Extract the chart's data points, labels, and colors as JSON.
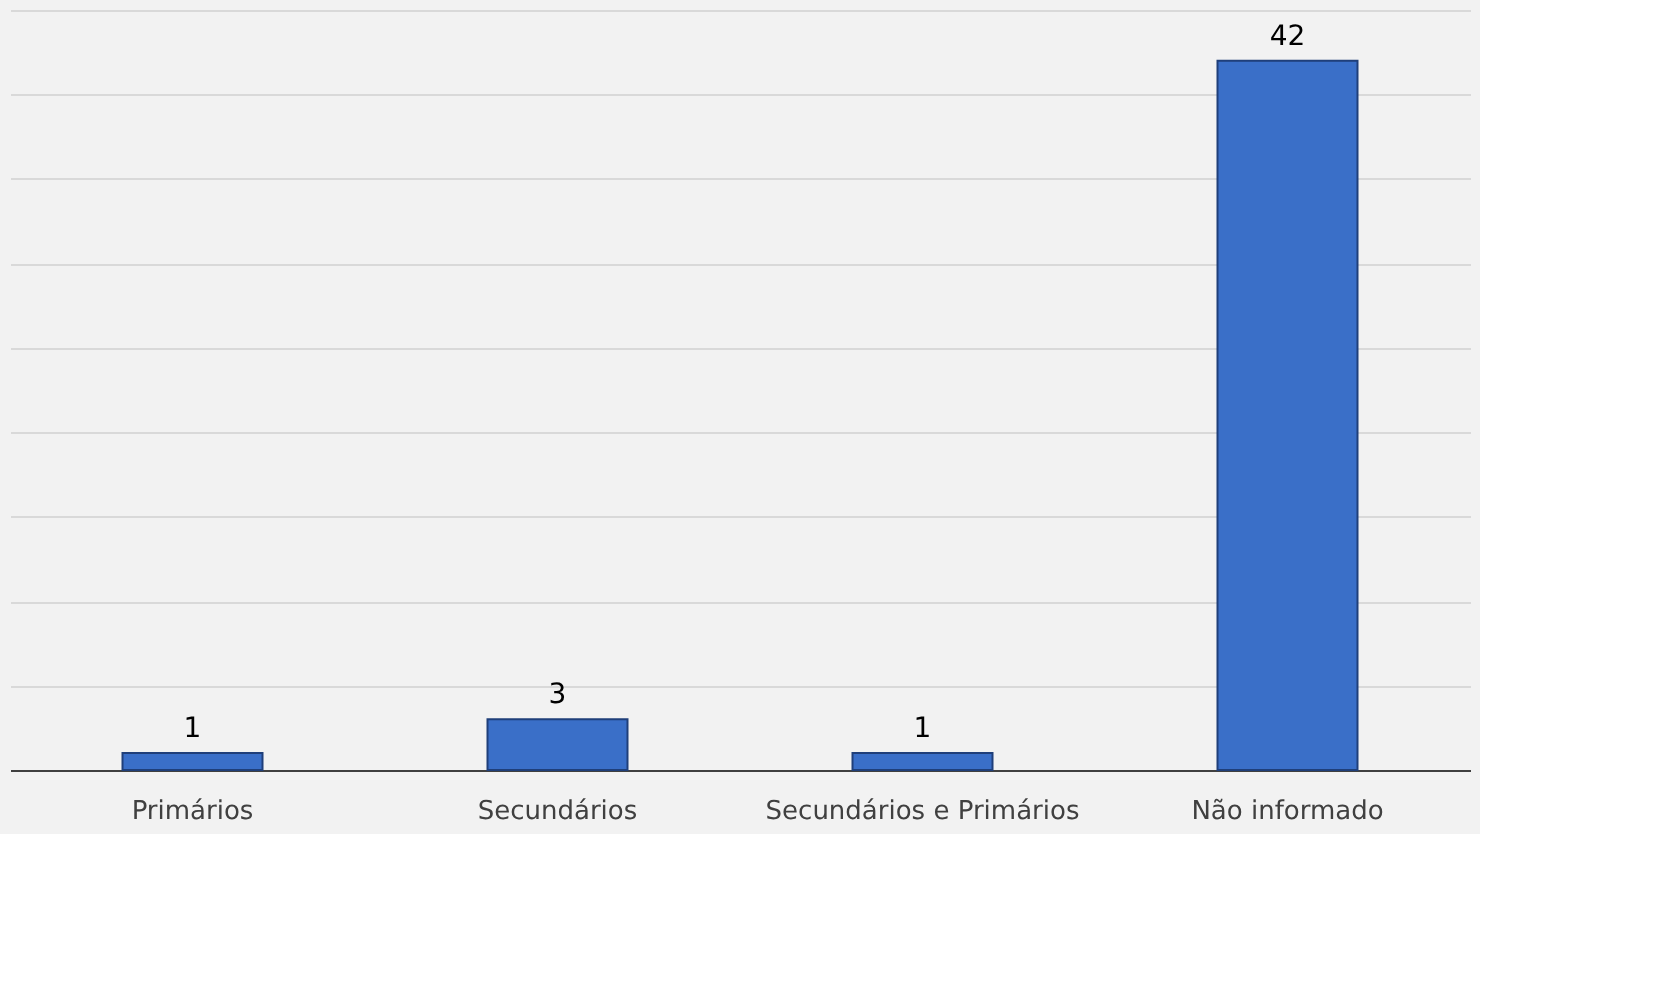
{
  "chart_data": {
    "type": "bar",
    "categories": [
      "Primários",
      "Secundários",
      "Secundários e Primários",
      "Não informado"
    ],
    "values": [
      1,
      3,
      1,
      42
    ],
    "color": "#3a6fc8",
    "data_labels": true,
    "ylim": [
      0,
      45
    ],
    "yticks": [
      {
        "value": 0,
        "label": null
      },
      {
        "value": 5,
        "label": null
      },
      {
        "value": 10,
        "label": null
      },
      {
        "value": 15,
        "label": null
      },
      {
        "value": 20,
        "label": null
      },
      {
        "value": 25,
        "label": null
      },
      {
        "value": 30,
        "label": null
      },
      {
        "value": 35,
        "label": null
      },
      {
        "value": 40,
        "label": null
      },
      {
        "value": 45,
        "label": null
      }
    ],
    "tick_labels": "x",
    "grid": "y"
  }
}
